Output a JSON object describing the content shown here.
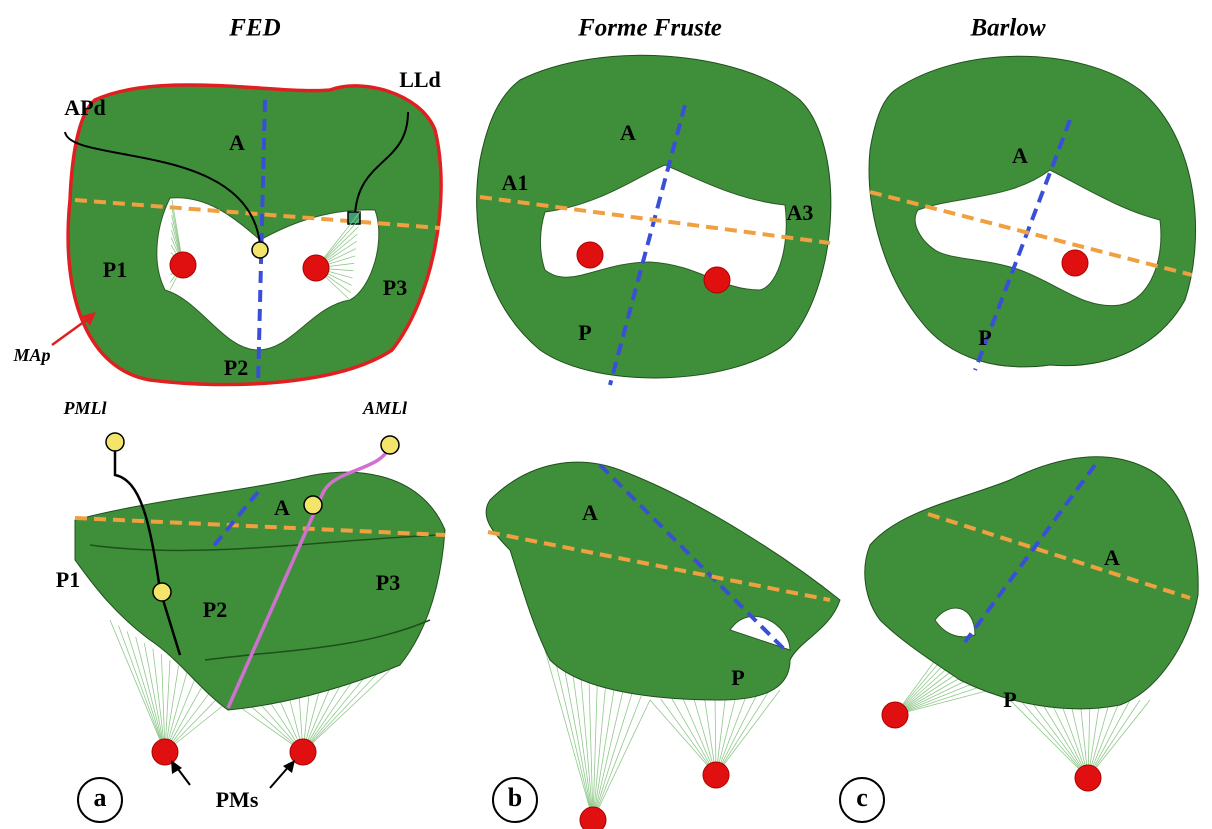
{
  "titles": [
    "FED",
    "Forme Fruste",
    "Barlow"
  ],
  "panel_letters": [
    "a",
    "b",
    "c"
  ],
  "fed": {
    "top": [
      "APd",
      "LLd",
      "A",
      "P1",
      "P2",
      "P3",
      "MAp"
    ],
    "bottom": [
      "PMLl",
      "AMLl",
      "A",
      "P1",
      "P2",
      "P3",
      "PMs"
    ]
  },
  "forme_fruste": {
    "top": [
      "A1",
      "A",
      "A3",
      "P"
    ],
    "bottom": [
      "A",
      "P"
    ]
  },
  "barlow": {
    "top": [
      "A",
      "P"
    ],
    "bottom": [
      "A",
      "P"
    ]
  }
}
